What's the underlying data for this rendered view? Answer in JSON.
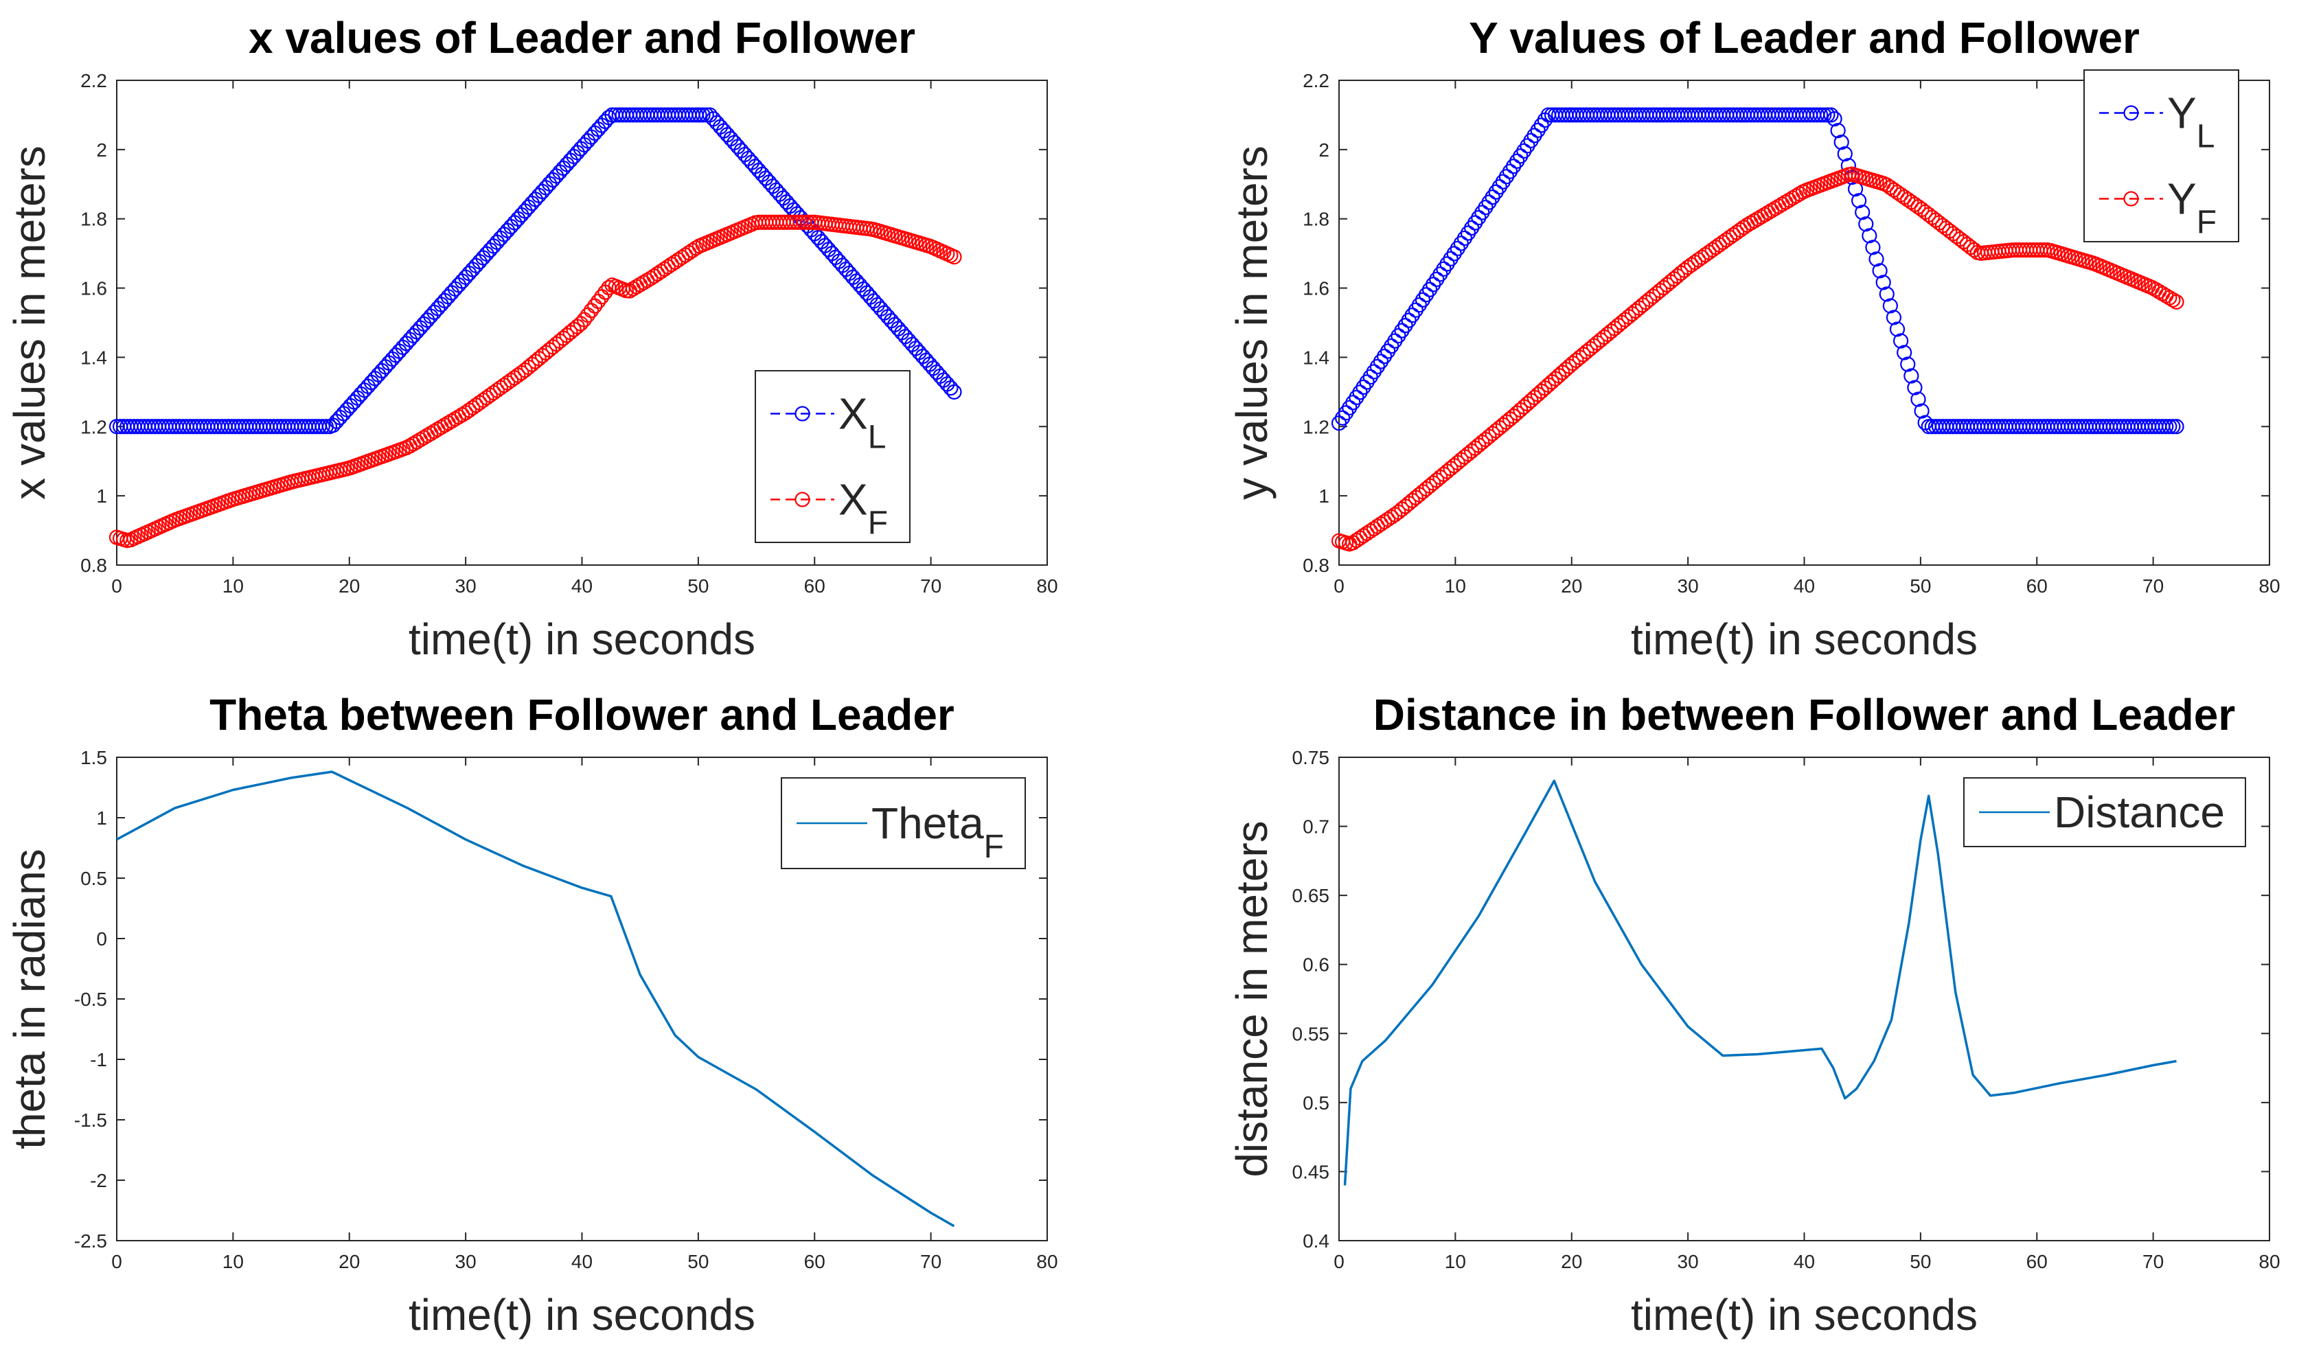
{
  "chart_data": [
    {
      "id": "x_plot",
      "type": "scatter",
      "title": "x values of Leader and Follower",
      "xlabel": "time(t) in seconds",
      "ylabel": "x values in meters",
      "xlim": [
        0,
        80
      ],
      "ylim": [
        0.8,
        2.2
      ],
      "xticks": [
        "0",
        "10",
        "20",
        "30",
        "40",
        "50",
        "60",
        "70",
        "80"
      ],
      "yticks": [
        "0.8",
        "1",
        "1.2",
        "1.4",
        "1.6",
        "1.8",
        "2",
        "2.2"
      ],
      "legend_position": "lower-right",
      "series": [
        {
          "name": "X_L",
          "label": "X",
          "sub": "L",
          "color": "#0000ff",
          "marker": "circle",
          "points": [
            [
              0,
              1.2
            ],
            [
              18.5,
              1.2
            ],
            [
              42.5,
              2.1
            ],
            [
              51,
              2.1
            ],
            [
              72,
              1.3
            ]
          ]
        },
        {
          "name": "X_F",
          "label": "X",
          "sub": "F",
          "color": "#ff0000",
          "marker": "circle",
          "points": [
            [
              0,
              0.88
            ],
            [
              1,
              0.87
            ],
            [
              5,
              0.93
            ],
            [
              10,
              0.99
            ],
            [
              15,
              1.04
            ],
            [
              20,
              1.08
            ],
            [
              25,
              1.14
            ],
            [
              30,
              1.24
            ],
            [
              35,
              1.36
            ],
            [
              40,
              1.5
            ],
            [
              42.5,
              1.61
            ],
            [
              44,
              1.59
            ],
            [
              46,
              1.63
            ],
            [
              50,
              1.72
            ],
            [
              55,
              1.79
            ],
            [
              60,
              1.79
            ],
            [
              65,
              1.77
            ],
            [
              70,
              1.72
            ],
            [
              72,
              1.69
            ]
          ]
        }
      ]
    },
    {
      "id": "y_plot",
      "type": "scatter",
      "title": "Y values of Leader and Follower",
      "xlabel": "time(t) in seconds",
      "ylabel": "y values in meters",
      "xlim": [
        0,
        80
      ],
      "ylim": [
        0.8,
        2.2
      ],
      "xticks": [
        "0",
        "10",
        "20",
        "30",
        "40",
        "50",
        "60",
        "70",
        "80"
      ],
      "yticks": [
        "0.8",
        "1",
        "1.2",
        "1.4",
        "1.6",
        "1.8",
        "2",
        "2.2"
      ],
      "legend_position": "top-right",
      "series": [
        {
          "name": "Y_L",
          "label": "Y",
          "sub": "L",
          "color": "#0000ff",
          "marker": "circle",
          "points": [
            [
              0,
              1.21
            ],
            [
              18,
              2.1
            ],
            [
              42.5,
              2.1
            ],
            [
              50.5,
              1.2
            ],
            [
              72,
              1.2
            ]
          ]
        },
        {
          "name": "Y_F",
          "label": "Y",
          "sub": "F",
          "color": "#ff0000",
          "marker": "circle",
          "points": [
            [
              0,
              0.87
            ],
            [
              1,
              0.86
            ],
            [
              5,
              0.95
            ],
            [
              10,
              1.09
            ],
            [
              15,
              1.23
            ],
            [
              20,
              1.38
            ],
            [
              25,
              1.52
            ],
            [
              30,
              1.66
            ],
            [
              35,
              1.78
            ],
            [
              40,
              1.88
            ],
            [
              44,
              1.93
            ],
            [
              47,
              1.9
            ],
            [
              50,
              1.83
            ],
            [
              55,
              1.7
            ],
            [
              58,
              1.71
            ],
            [
              61,
              1.71
            ],
            [
              65,
              1.67
            ],
            [
              70,
              1.6
            ],
            [
              72,
              1.56
            ]
          ]
        }
      ]
    },
    {
      "id": "theta_plot",
      "type": "line",
      "title": "Theta between Follower and Leader",
      "xlabel": "time(t) in seconds",
      "ylabel": "theta in radians",
      "xlim": [
        0,
        80
      ],
      "ylim": [
        -2.5,
        1.5
      ],
      "xticks": [
        "0",
        "10",
        "20",
        "30",
        "40",
        "50",
        "60",
        "70",
        "80"
      ],
      "yticks": [
        "-2.5",
        "-2",
        "-1.5",
        "-1",
        "-0.5",
        "0",
        "0.5",
        "1",
        "1.5"
      ],
      "legend_position": "top-right",
      "series": [
        {
          "name": "Theta_F",
          "label": "Theta",
          "sub": "F",
          "color": "#0072bd",
          "points": [
            [
              0,
              0.82
            ],
            [
              5,
              1.08
            ],
            [
              10,
              1.23
            ],
            [
              15,
              1.33
            ],
            [
              18.5,
              1.38
            ],
            [
              25,
              1.08
            ],
            [
              30,
              0.82
            ],
            [
              35,
              0.6
            ],
            [
              40,
              0.42
            ],
            [
              42.5,
              0.35
            ],
            [
              45,
              -0.3
            ],
            [
              48,
              -0.8
            ],
            [
              50,
              -0.98
            ],
            [
              55,
              -1.25
            ],
            [
              60,
              -1.6
            ],
            [
              65,
              -1.96
            ],
            [
              70,
              -2.27
            ],
            [
              72,
              -2.38
            ]
          ]
        }
      ]
    },
    {
      "id": "distance_plot",
      "type": "line",
      "title": "Distance in between Follower and Leader",
      "xlabel": "time(t) in seconds",
      "ylabel": "distance in meters",
      "xlim": [
        0,
        80
      ],
      "ylim": [
        0.4,
        0.75
      ],
      "xticks": [
        "0",
        "10",
        "20",
        "30",
        "40",
        "50",
        "60",
        "70",
        "80"
      ],
      "yticks": [
        "0.4",
        "0.45",
        "0.5",
        "0.55",
        "0.6",
        "0.65",
        "0.7",
        "0.75"
      ],
      "legend_position": "top-right",
      "series": [
        {
          "name": "Distance",
          "label": "Distance",
          "sub": "",
          "color": "#0072bd",
          "points": [
            [
              0.5,
              0.44
            ],
            [
              1,
              0.51
            ],
            [
              2,
              0.53
            ],
            [
              4,
              0.545
            ],
            [
              8,
              0.585
            ],
            [
              12,
              0.635
            ],
            [
              16,
              0.695
            ],
            [
              18.5,
              0.733
            ],
            [
              22,
              0.66
            ],
            [
              26,
              0.6
            ],
            [
              30,
              0.555
            ],
            [
              33,
              0.534
            ],
            [
              36,
              0.535
            ],
            [
              41.5,
              0.539
            ],
            [
              42.5,
              0.525
            ],
            [
              43.5,
              0.503
            ],
            [
              44.5,
              0.51
            ],
            [
              46,
              0.53
            ],
            [
              47.5,
              0.56
            ],
            [
              49,
              0.63
            ],
            [
              50,
              0.69
            ],
            [
              50.7,
              0.722
            ],
            [
              51.5,
              0.68
            ],
            [
              53,
              0.58
            ],
            [
              54.5,
              0.52
            ],
            [
              56,
              0.505
            ],
            [
              58,
              0.507
            ],
            [
              62,
              0.514
            ],
            [
              66,
              0.52
            ],
            [
              70,
              0.527
            ],
            [
              72,
              0.53
            ]
          ]
        }
      ]
    }
  ]
}
